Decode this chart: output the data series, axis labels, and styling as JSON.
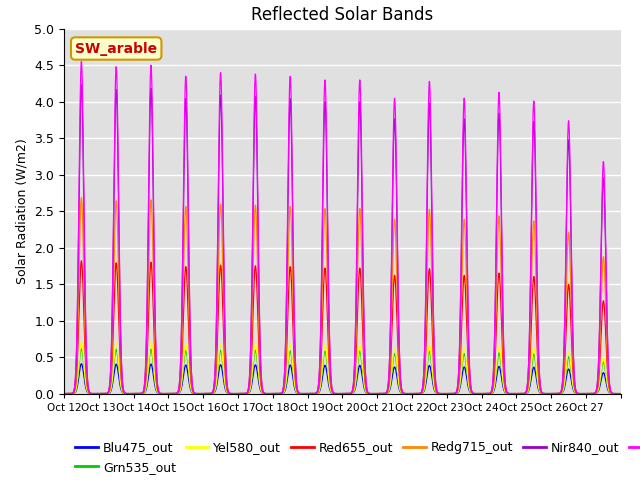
{
  "title": "Reflected Solar Bands",
  "ylabel": "Solar Radiation (W/m2)",
  "xlabel": "",
  "annotation": "SW_arable",
  "ylim": [
    0,
    5.0
  ],
  "yticks": [
    0.0,
    0.5,
    1.0,
    1.5,
    2.0,
    2.5,
    3.0,
    3.5,
    4.0,
    4.5,
    5.0
  ],
  "xtick_labels": [
    "Oct 12",
    "Oct 13",
    "Oct 14",
    "Oct 15",
    "Oct 16",
    "Oct 17",
    "Oct 18",
    "Oct 19",
    "Oct 20",
    "Oct 21",
    "Oct 22",
    "Oct 23",
    "Oct 24",
    "Oct 25",
    "Oct 26",
    "Oct 27"
  ],
  "bands": {
    "Blu475_out": {
      "color": "#0000ff",
      "scale": 0.09
    },
    "Grn535_out": {
      "color": "#00cc00",
      "scale": 0.135
    },
    "Yel580_out": {
      "color": "#ffff00",
      "scale": 0.155
    },
    "Red655_out": {
      "color": "#ff0000",
      "scale": 0.4
    },
    "Redg715_out": {
      "color": "#ff8800",
      "scale": 0.59
    },
    "Nir840_out": {
      "color": "#9900cc",
      "scale": 0.93
    },
    "Nir945_out": {
      "color": "#ff00ff",
      "scale": 1.0
    }
  },
  "peak_values": [
    4.55,
    4.48,
    4.5,
    4.35,
    4.4,
    4.38,
    4.35,
    4.3,
    4.3,
    4.05,
    4.28,
    4.05,
    4.13,
    4.01,
    3.74,
    3.18
  ],
  "background_color": "#e0e0e0",
  "legend_fontsize": 9,
  "title_fontsize": 12,
  "annotation_fontsize": 10
}
